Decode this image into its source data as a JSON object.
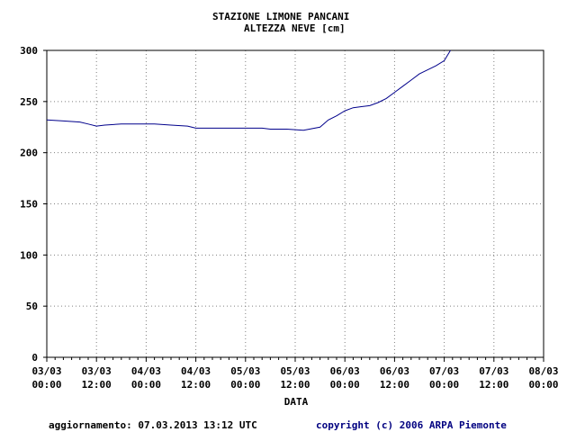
{
  "chart_data": {
    "type": "line",
    "title": "STAZIONE LIMONE PANCANI",
    "subtitle": "ALTEZZA NEVE [cm]",
    "xlabel": "DATA",
    "ylabel": "",
    "ylim": [
      0,
      300
    ],
    "xlim": [
      0,
      120
    ],
    "yticks": [
      0,
      50,
      100,
      150,
      200,
      250,
      300
    ],
    "xtick_labels": [
      {
        "date": "03/03",
        "time": "00:00"
      },
      {
        "date": "03/03",
        "time": "12:00"
      },
      {
        "date": "04/03",
        "time": "00:00"
      },
      {
        "date": "04/03",
        "time": "12:00"
      },
      {
        "date": "05/03",
        "time": "00:00"
      },
      {
        "date": "05/03",
        "time": "12:00"
      },
      {
        "date": "06/03",
        "time": "00:00"
      },
      {
        "date": "06/03",
        "time": "12:00"
      },
      {
        "date": "07/03",
        "time": "00:00"
      },
      {
        "date": "07/03",
        "time": "12:00"
      },
      {
        "date": "08/03",
        "time": "00:00"
      }
    ],
    "x_unit": "hours since 03/03 00:00",
    "grid": true,
    "series": [
      {
        "name": "Altezza neve",
        "color": "#00008b",
        "x": [
          0,
          4,
          8,
          10,
          12,
          14,
          18,
          22,
          26,
          30,
          34,
          36,
          40,
          44,
          48,
          52,
          54,
          58,
          62,
          66,
          68,
          70,
          72,
          74,
          76,
          78,
          80,
          82,
          84,
          86,
          88,
          90,
          92,
          94,
          96,
          97.5
        ],
        "values": [
          232,
          231,
          230,
          228,
          226,
          227,
          228,
          228,
          228,
          227,
          226,
          224,
          224,
          224,
          224,
          224,
          223,
          223,
          222,
          225,
          232,
          236,
          241,
          244,
          245,
          246,
          249,
          253,
          259,
          265,
          271,
          277,
          281,
          285,
          290,
          300
        ]
      }
    ]
  },
  "footer": {
    "updated": "aggiornamento: 07.03.2013 13:12 UTC",
    "copyright": "copyright (c) 2006 ARPA Piemonte"
  },
  "colors": {
    "line": "#00008b",
    "grid": "#808080",
    "copyright": "#000080"
  }
}
